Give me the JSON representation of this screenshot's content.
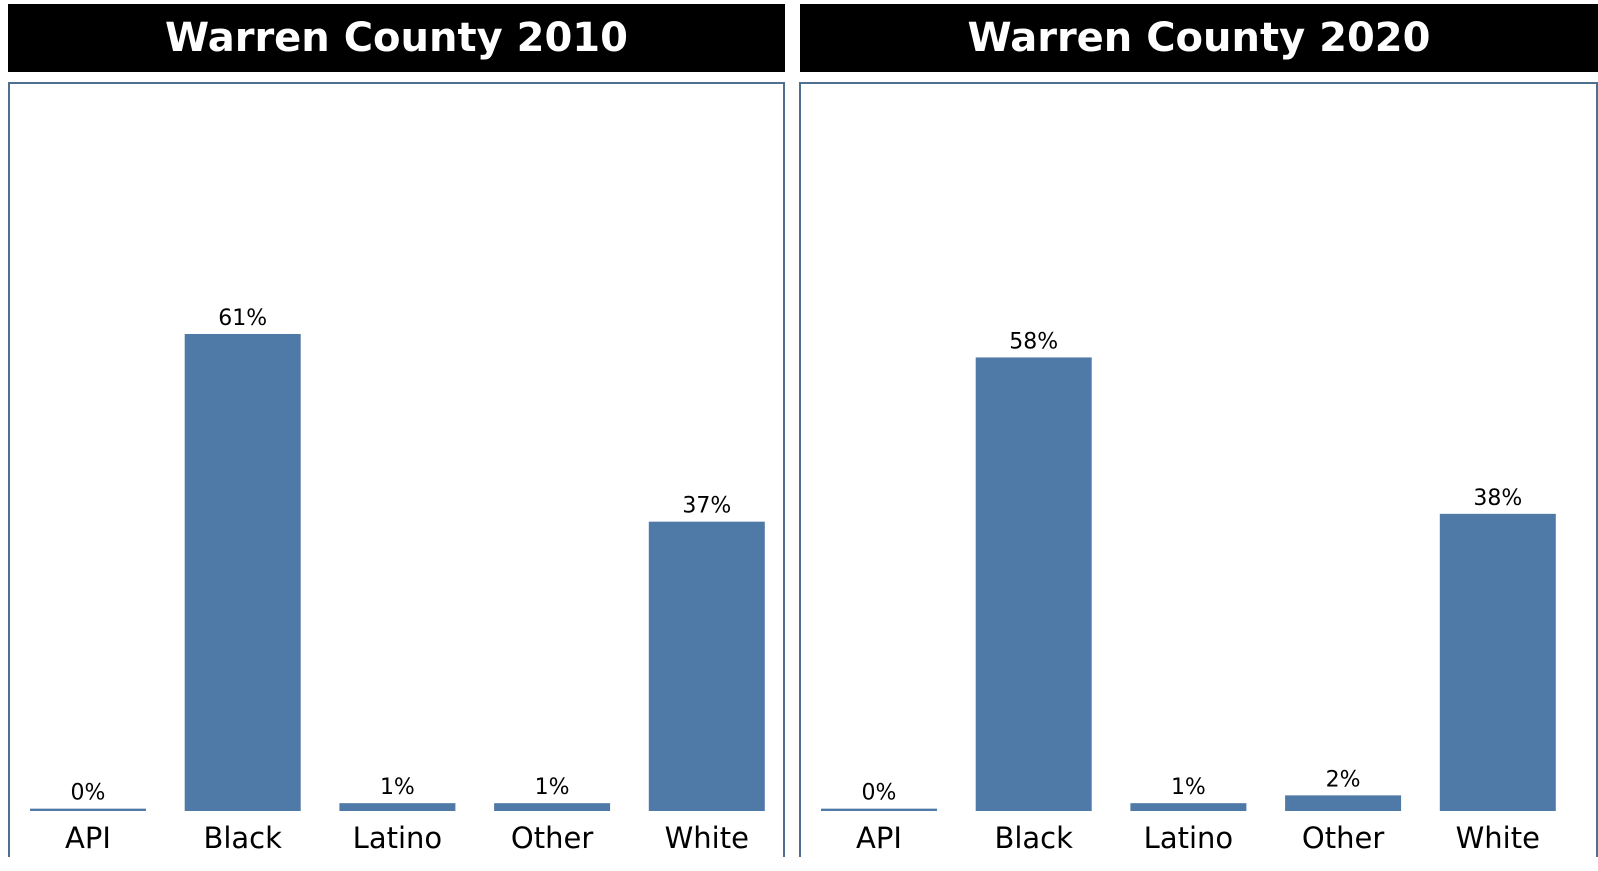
{
  "panels": [
    {
      "title": "Warren County 2010"
    },
    {
      "title": "Warren County 2020"
    }
  ],
  "chart_data": [
    {
      "type": "bar",
      "title": "Warren County 2010",
      "categories": [
        "API",
        "Black",
        "Latino",
        "Other",
        "White"
      ],
      "values": [
        0.3,
        61,
        1,
        1,
        37
      ],
      "labels": [
        "0%",
        "61%",
        "1%",
        "1%",
        "37%"
      ],
      "ylim": [
        0,
        100
      ],
      "grid": false,
      "color": "#4f79a6"
    },
    {
      "type": "bar",
      "title": "Warren County 2020",
      "categories": [
        "API",
        "Black",
        "Latino",
        "Other",
        "White"
      ],
      "values": [
        0.3,
        58,
        1,
        2,
        38
      ],
      "labels": [
        "0%",
        "58%",
        "1%",
        "2%",
        "38%"
      ],
      "ylim": [
        0,
        100
      ],
      "grid": false,
      "color": "#4f79a6"
    }
  ]
}
